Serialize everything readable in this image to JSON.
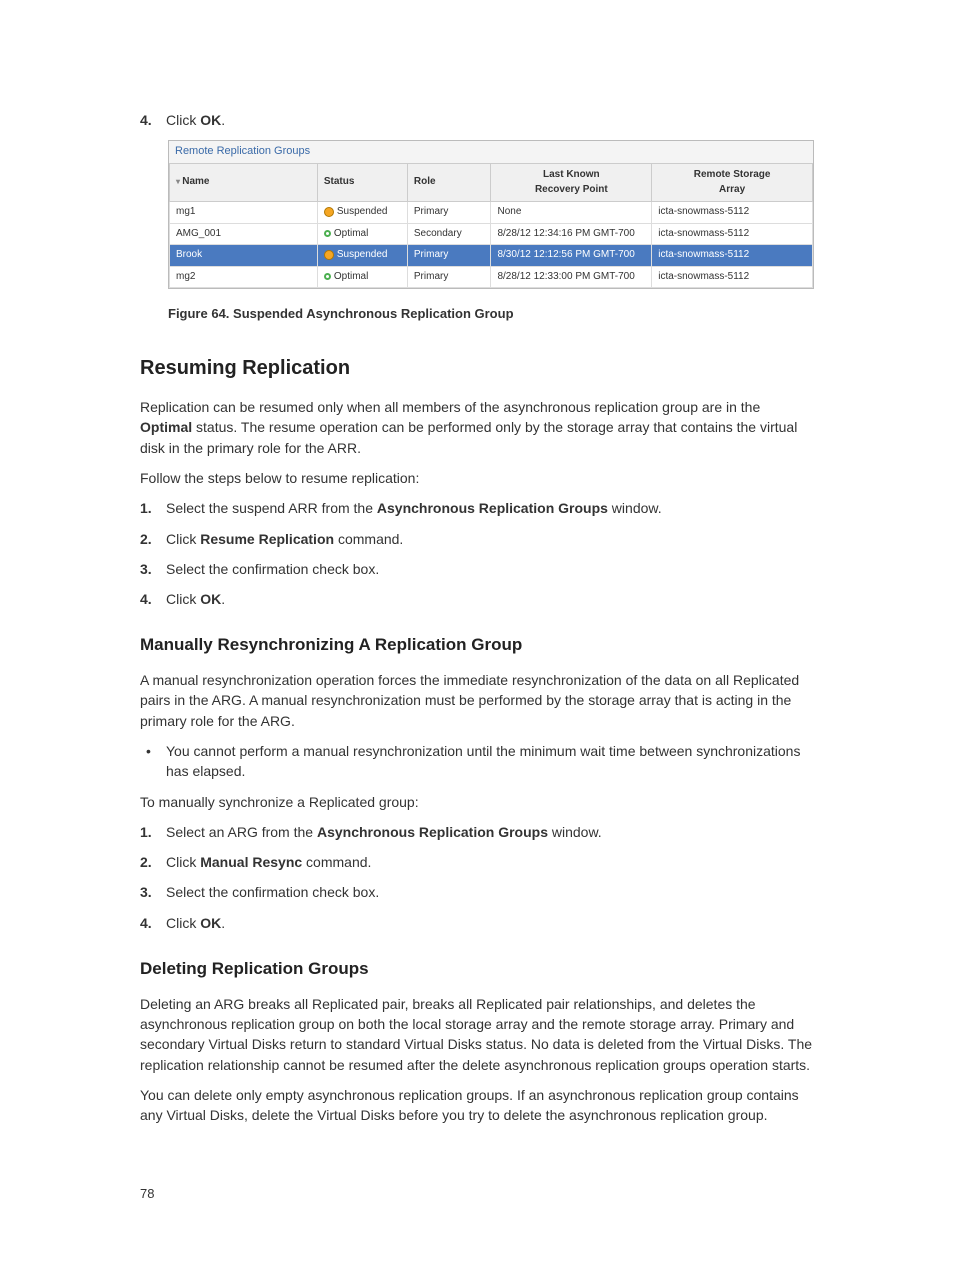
{
  "top_step": {
    "num": "4.",
    "pre": "Click ",
    "bold": "OK",
    "post": "."
  },
  "table": {
    "title": "Remote Replication Groups",
    "headers": [
      "Name",
      "Status",
      "Role",
      "Last Known Recovery Point",
      "Remote Storage Array"
    ],
    "col_widths": [
      "23%",
      "14%",
      "13%",
      "25%",
      "25%"
    ],
    "rows": [
      {
        "selected": false,
        "name": "mg1",
        "status_icon": "suspended",
        "status": "Suspended",
        "role": "Primary",
        "recovery": "None",
        "remote": "icta-snowmass-5112"
      },
      {
        "selected": false,
        "name": "AMG_001",
        "status_icon": "optimal",
        "status": "Optimal",
        "role": "Secondary",
        "recovery": "8/28/12 12:34:16 PM GMT-700",
        "remote": "icta-snowmass-5112"
      },
      {
        "selected": true,
        "name": "Brook",
        "status_icon": "suspended",
        "status": "Suspended",
        "role": "Primary",
        "recovery": "8/30/12 12:12:56 PM GMT-700",
        "remote": "icta-snowmass-5112"
      },
      {
        "selected": false,
        "name": "mg2",
        "status_icon": "optimal",
        "status": "Optimal",
        "role": "Primary",
        "recovery": "8/28/12 12:33:00 PM GMT-700",
        "remote": "icta-snowmass-5112"
      }
    ]
  },
  "figure_caption": "Figure 64. Suspended Asynchronous Replication Group",
  "resuming": {
    "heading": "Resuming Replication",
    "p1a": "Replication can be resumed only when all members of the asynchronous replication group are in the ",
    "p1b": "Optimal",
    "p1c": " status. The resume operation can be performed only by the storage array that contains the virtual disk in the primary role for the ARR.",
    "p2": "Follow the steps below to resume replication:",
    "steps": [
      {
        "n": "1.",
        "pre": "Select the suspend ARR from the ",
        "bold": "Asynchronous Replication Groups",
        "post": " window."
      },
      {
        "n": "2.",
        "pre": "Click ",
        "bold": "Resume Replication",
        "post": " command."
      },
      {
        "n": "3.",
        "pre": "Select the confirmation check box.",
        "bold": "",
        "post": ""
      },
      {
        "n": "4.",
        "pre": "Click ",
        "bold": "OK",
        "post": "."
      }
    ]
  },
  "resync": {
    "heading": "Manually Resynchronizing A Replication Group",
    "p1": "A manual resynchronization operation forces the immediate resynchronization of the data on all Replicated pairs in the ARG. A manual resynchronization must be performed by the storage array that is acting in the primary role for the ARG.",
    "bullet": "You cannot perform a manual resynchronization until the minimum wait time between synchronizations has elapsed.",
    "p2": "To manually synchronize a Replicated group:",
    "steps": [
      {
        "n": "1.",
        "pre": "Select an ARG from the ",
        "bold": "Asynchronous Replication Groups",
        "post": " window."
      },
      {
        "n": "2.",
        "pre": "Click ",
        "bold": "Manual Resync",
        "post": " command."
      },
      {
        "n": "3.",
        "pre": "Select the confirmation check box.",
        "bold": "",
        "post": ""
      },
      {
        "n": "4.",
        "pre": "Click ",
        "bold": "OK",
        "post": "."
      }
    ]
  },
  "deleting": {
    "heading": "Deleting Replication Groups",
    "p1": "Deleting an ARG breaks all Replicated pair, breaks all Replicated pair relationships, and deletes the asynchronous replication group on both the local storage array and the remote storage array. Primary and secondary Virtual Disks return to standard Virtual Disks status. No data is deleted from the Virtual Disks. The replication relationship cannot be resumed after the delete asynchronous replication groups operation starts.",
    "p2": "You can delete only empty asynchronous replication groups. If an asynchronous replication group contains any Virtual Disks, delete the Virtual Disks before you try to delete the asynchronous replication group."
  },
  "page_number": "78"
}
